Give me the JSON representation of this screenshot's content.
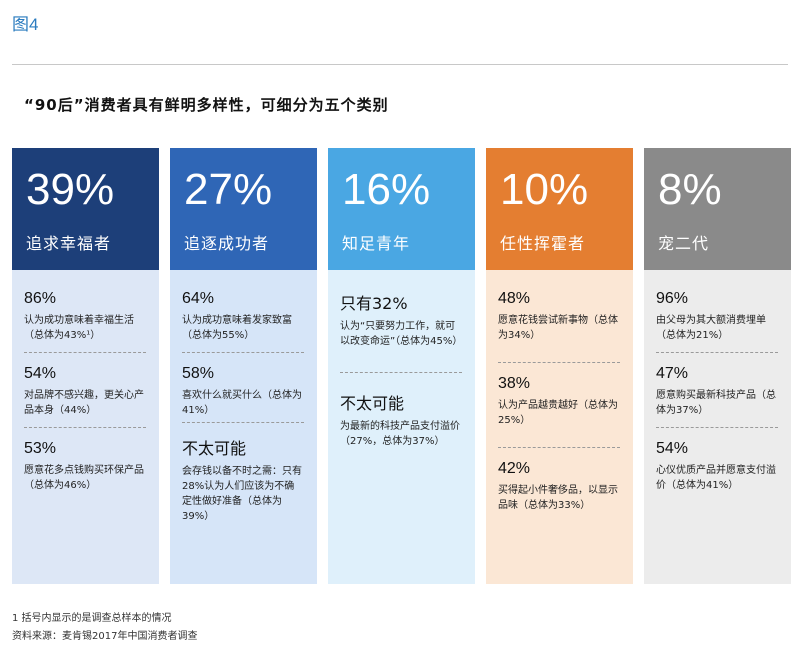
{
  "figure_label": "图4",
  "chart_data": {
    "type": "table",
    "title": "“90后”消费者具有鲜明多样性，可细分为五个类别",
    "segments": [
      {
        "percent": "39%",
        "value": 39,
        "name": "追求幸福者",
        "header_color": "#1d3f79",
        "body_color": "#dde7f6",
        "items": [
          {
            "stat": "86%",
            "desc": "认为成功意味着幸福生活（总体为43%¹）"
          },
          {
            "stat": "54%",
            "desc": "对品牌不感兴趣，更关心产品本身（44%）"
          },
          {
            "stat": "53%",
            "desc": "愿意花多点钱购买环保产品（总体为46%）"
          }
        ]
      },
      {
        "percent": "27%",
        "value": 27,
        "name": "追逐成功者",
        "header_color": "#2f66b6",
        "body_color": "#d6e5f8",
        "items": [
          {
            "stat": "64%",
            "desc": "认为成功意味着发家致富（总体为55%）"
          },
          {
            "stat": "58%",
            "desc": "喜欢什么就买什么（总体为41%）"
          },
          {
            "stat": "不太可能",
            "desc": "会存钱以备不时之需：只有28%认为人们应该为不确定性做好准备（总体为39%）"
          }
        ]
      },
      {
        "percent": "16%",
        "value": 16,
        "name": "知足青年",
        "header_color": "#4aa7e3",
        "body_color": "#dff0fb",
        "items": [
          {
            "stat": "只有32%",
            "desc": "认为“只要努力工作，就可以改变命运”（总体为45%）"
          },
          {
            "stat": "不太可能",
            "desc": "为最新的科技产品支付溢价（27%，总体为37%）"
          }
        ]
      },
      {
        "percent": "10%",
        "value": 10,
        "name": "任性挥霍者",
        "header_color": "#e47e31",
        "body_color": "#fbe7d5",
        "items": [
          {
            "stat": "48%",
            "desc": "愿意花钱尝试新事物（总体为34%）"
          },
          {
            "stat": "38%",
            "desc": "认为产品越贵越好（总体为25%）"
          },
          {
            "stat": "42%",
            "desc": "买得起小件奢侈品，以显示品味（总体为33%）"
          }
        ]
      },
      {
        "percent": "8%",
        "value": 8,
        "name": "宠二代",
        "header_color": "#8a8a8a",
        "body_color": "#ececec",
        "items": [
          {
            "stat": "96%",
            "desc": "由父母为其大额消费埋单（总体为21%）"
          },
          {
            "stat": "47%",
            "desc": "愿意购买最新科技产品（总体为37%）"
          },
          {
            "stat": "54%",
            "desc": "心仪优质产品并愿意支付溢价（总体为41%）"
          }
        ]
      }
    ]
  },
  "footnotes": [
    "1 括号内显示的是调查总样本的情况",
    "资料来源：麦肯锡2017年中国消费者调查"
  ]
}
